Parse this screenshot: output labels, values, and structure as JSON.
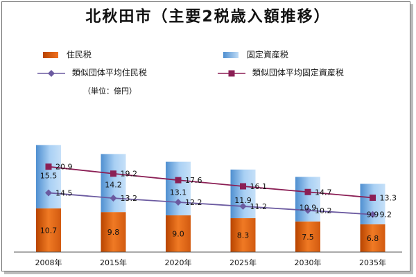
{
  "chart_data": {
    "type": "bar",
    "title": "北秋田市（主要2税歳入額推移）",
    "unit_note": "（単位：億円）",
    "categories": [
      "2008年",
      "2015年",
      "2020年",
      "2025年",
      "2030年",
      "2035年"
    ],
    "ylim": [
      0,
      25
    ],
    "stacked_bars": [
      {
        "name": "住民税",
        "values": [
          10.7,
          9.8,
          9.0,
          8.3,
          7.5,
          6.8
        ],
        "color": "#e06010"
      },
      {
        "name": "固定資産税",
        "values": [
          15.5,
          14.2,
          13.1,
          11.9,
          10.9,
          9.9
        ],
        "color": "#7fb7ec"
      }
    ],
    "lines": [
      {
        "name": "類似団体平均住民税",
        "values": [
          14.5,
          13.2,
          12.2,
          11.2,
          10.2,
          9.2
        ],
        "color": "#6b5aa0"
      },
      {
        "name": "類似団体平均固定資産税",
        "values": [
          20.9,
          19.2,
          17.6,
          16.1,
          14.7,
          13.3
        ],
        "color": "#8b1f55"
      }
    ],
    "legend": [
      {
        "label": "住民税",
        "kind": "bar",
        "color": "#e06010"
      },
      {
        "label": "固定資産税",
        "kind": "bar",
        "color": "#7fb7ec"
      },
      {
        "label": "類似団体平均住民税",
        "kind": "line-diamond",
        "color": "#6b5aa0"
      },
      {
        "label": "類似団体平均固定資産税",
        "kind": "line-square",
        "color": "#8b1f55"
      }
    ],
    "legend_position": "top",
    "grid": false
  }
}
